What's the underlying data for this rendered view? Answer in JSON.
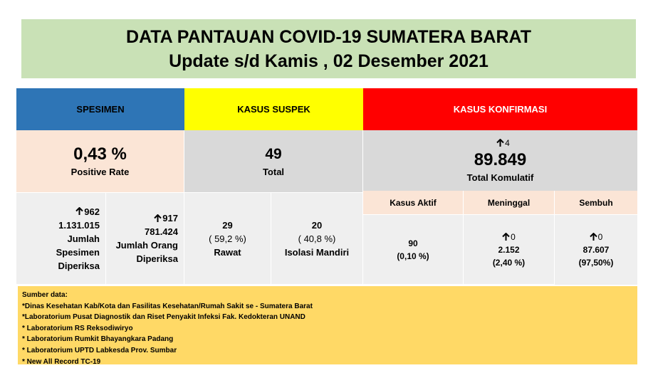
{
  "header": {
    "title": "DATA PANTAUAN COVID-19 SUMATERA BARAT",
    "subtitle": "Update s/d Kamis , 02 Desember 2021"
  },
  "spesimen": {
    "heading": "SPESIMEN",
    "rate": "0,43 %",
    "rate_label": "Positive Rate",
    "items": [
      {
        "increase": "962",
        "value": "1.131.015",
        "label": "Jumlah Spesimen Diperiksa"
      },
      {
        "increase": "917",
        "value": "781.424",
        "label": "Jumlah Orang Diperiksa"
      }
    ]
  },
  "suspek": {
    "heading": "KASUS SUSPEK",
    "total": "49",
    "total_label": "Total",
    "items": [
      {
        "value": "29",
        "percent": "( 59,2 %)",
        "label": "Rawat"
      },
      {
        "value": "20",
        "percent": "( 40,8 %)",
        "label": "Isolasi Mandiri"
      }
    ]
  },
  "konfirmasi": {
    "heading": "KASUS KONFIRMASI",
    "increase": "4",
    "total": "89.849",
    "total_label": "Total Komulatif",
    "items": [
      {
        "label": "Kasus Aktif",
        "value": "90",
        "percent": "(0,10 %)"
      },
      {
        "label": "Meninggal",
        "increase": "0",
        "value": "2.152",
        "percent": "(2,40 %)"
      },
      {
        "label": "Sembuh",
        "increase": "0",
        "value": "87.607",
        "percent": "(97,50%)"
      }
    ]
  },
  "sources": {
    "heading": "Sumber data:",
    "items": [
      "*Dinas Kesehatan Kab/Kota  dan Fasilitas Kesehatan/Rumah Sakit se - Sumatera Barat",
      "*Laboratorium  Pusat Diagnostik dan Riset  Penyakit Infeksi Fak. Kedokteran UNAND",
      "* Laboratorium RS Reksodiwiryo",
      "* Laboratorium Rumkit Bhayangkara Padang",
      "* Laboratorium UPTD Labkesda Prov. Sumbar",
      "* New All Record TC-19"
    ]
  }
}
